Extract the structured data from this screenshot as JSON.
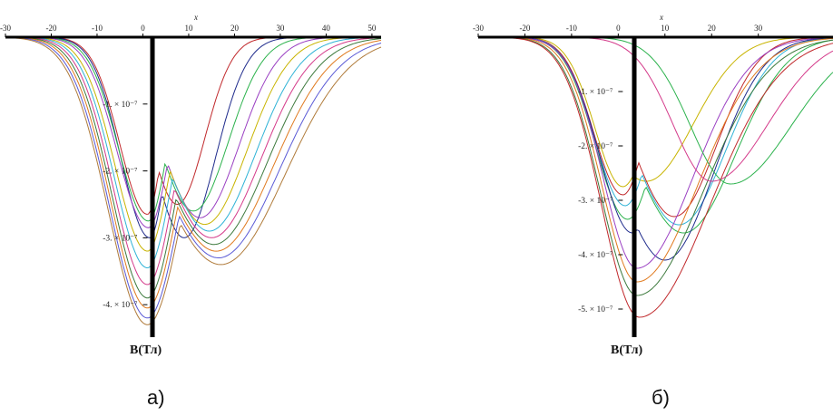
{
  "chart_data": [
    {
      "type": "line",
      "caption": "а)",
      "x_axis_name": "x",
      "y_axis_name": "B(Тл)",
      "xlim": [
        -30,
        52
      ],
      "ylim": [
        -4.35e-07,
        0
      ],
      "x_ticks": [
        -30,
        -20,
        -10,
        0,
        10,
        20,
        30,
        40,
        50
      ],
      "x_tick_labels": [
        "-30",
        "-20",
        "-10",
        "0",
        "10",
        "20",
        "30",
        "40",
        "50"
      ],
      "y_ticks": [
        -1e-07,
        -2e-07,
        -3e-07,
        -4e-07
      ],
      "y_tick_labels": [
        "-1. × 10⁻⁷",
        "-2. × 10⁻⁷",
        "-3. × 10⁻⁷",
        "-4. × 10⁻⁷"
      ],
      "grid": false,
      "legend": "none",
      "series": [
        {
          "color": "#c0282b",
          "min_x": 1.0,
          "min_y": -2.65e-07,
          "bump_x": 7.5,
          "bump_y": -2.5e-07,
          "right_width": 6.0
        },
        {
          "color": "#1f2b8c",
          "min_x": 1.5,
          "min_y": -3e-07,
          "bump_x": 9.0,
          "bump_y": -3e-07,
          "right_width": 6.8
        },
        {
          "color": "#2bb24c",
          "min_x": 1.2,
          "min_y": -2.75e-07,
          "bump_x": 11.0,
          "bump_y": -2.6e-07,
          "right_width": 7.6
        },
        {
          "color": "#9a3fc2",
          "min_x": 1.2,
          "min_y": -2.85e-07,
          "bump_x": 12.5,
          "bump_y": -2.7e-07,
          "right_width": 8.4
        },
        {
          "color": "#c8b400",
          "min_x": 1.0,
          "min_y": -3.2e-07,
          "bump_x": 13.5,
          "bump_y": -2.8e-07,
          "right_width": 9.2
        },
        {
          "color": "#2fb3d6",
          "min_x": 1.0,
          "min_y": -3.45e-07,
          "bump_x": 14.5,
          "bump_y": -2.9e-07,
          "right_width": 10.0
        },
        {
          "color": "#d43a8a",
          "min_x": 1.0,
          "min_y": -3.7e-07,
          "bump_x": 15.0,
          "bump_y": -3e-07,
          "right_width": 10.8
        },
        {
          "color": "#3d7a3d",
          "min_x": 1.0,
          "min_y": -3.9e-07,
          "bump_x": 15.5,
          "bump_y": -3.1e-07,
          "right_width": 11.6
        },
        {
          "color": "#e07a1f",
          "min_x": 1.0,
          "min_y": -4.05e-07,
          "bump_x": 16.0,
          "bump_y": -3.2e-07,
          "right_width": 12.4
        },
        {
          "color": "#5a5ad6",
          "min_x": 1.0,
          "min_y": -4.2e-07,
          "bump_x": 16.5,
          "bump_y": -3.3e-07,
          "right_width": 13.2
        },
        {
          "color": "#b07b3a",
          "min_x": 1.0,
          "min_y": -4.3e-07,
          "bump_x": 17.0,
          "bump_y": -3.4e-07,
          "right_width": 14.0
        }
      ]
    },
    {
      "type": "line",
      "caption": "б)",
      "x_axis_name": "x",
      "y_axis_name": "B(Тл)",
      "xlim": [
        -30,
        46
      ],
      "ylim": [
        -5.35e-07,
        0
      ],
      "x_ticks": [
        -30,
        -20,
        -10,
        0,
        10,
        20,
        30
      ],
      "x_tick_labels": [
        "-30",
        "-20",
        "-10",
        "0",
        "10",
        "20",
        "30"
      ],
      "y_ticks": [
        -1e-07,
        -2e-07,
        -3e-07,
        -4e-07,
        -5e-07
      ],
      "y_tick_labels": [
        "-1. × 10⁻⁷",
        "-2. × 10⁻⁷",
        "-3. × 10⁻⁷",
        "-4. × 10⁻⁷",
        "-5. × 10⁻⁷"
      ],
      "grid": false,
      "legend": "none",
      "series": [
        {
          "color": "#c8b400",
          "min_x": 1.0,
          "min_y": -2.75e-07,
          "bump_x": 6.0,
          "bump_y": -2.65e-07,
          "right_width": 10.0
        },
        {
          "color": "#c0282b",
          "min_x": 1.0,
          "min_y": -2.9e-07,
          "bump_x": 12.0,
          "bump_y": -3.3e-07,
          "right_width": 9.0
        },
        {
          "color": "#2fb3d6",
          "min_x": 1.5,
          "min_y": -3.1e-07,
          "bump_x": 13.0,
          "bump_y": -3.45e-07,
          "right_width": 10.0
        },
        {
          "color": "#2bb24c",
          "min_x": 2.0,
          "min_y": -3.35e-07,
          "bump_x": 14.0,
          "bump_y": -3.6e-07,
          "right_width": 11.0
        },
        {
          "color": "#1f2b8c",
          "min_x": 3.0,
          "min_y": -3.6e-07,
          "bump_x": 10.0,
          "bump_y": -4.1e-07,
          "right_width": 10.5
        },
        {
          "color": "#9a3fc2",
          "min_x": 4.0,
          "min_y": -4.25e-07,
          "bump_x": 4.0,
          "bump_y": -4.25e-07,
          "right_width": 12.0
        },
        {
          "color": "#e07a1f",
          "min_x": 4.0,
          "min_y": -4.5e-07,
          "bump_x": 4.0,
          "bump_y": -4.5e-07,
          "right_width": 13.0
        },
        {
          "color": "#3d7a3d",
          "min_x": 4.0,
          "min_y": -4.75e-07,
          "bump_x": 4.0,
          "bump_y": -4.75e-07,
          "right_width": 14.0
        },
        {
          "color": "#c0282b",
          "min_x": 4.5,
          "min_y": -5.15e-07,
          "bump_x": 4.5,
          "bump_y": -5.15e-07,
          "right_width": 15.0
        },
        {
          "color": "#d43a8a",
          "min_x": 20.0,
          "min_y": -2.65e-07,
          "bump_x": 20.0,
          "bump_y": -2.65e-07,
          "right_width": 12.0
        },
        {
          "color": "#2bb24c",
          "min_x": 24.0,
          "min_y": -2.7e-07,
          "bump_x": 24.0,
          "bump_y": -2.7e-07,
          "right_width": 13.0
        }
      ]
    }
  ]
}
